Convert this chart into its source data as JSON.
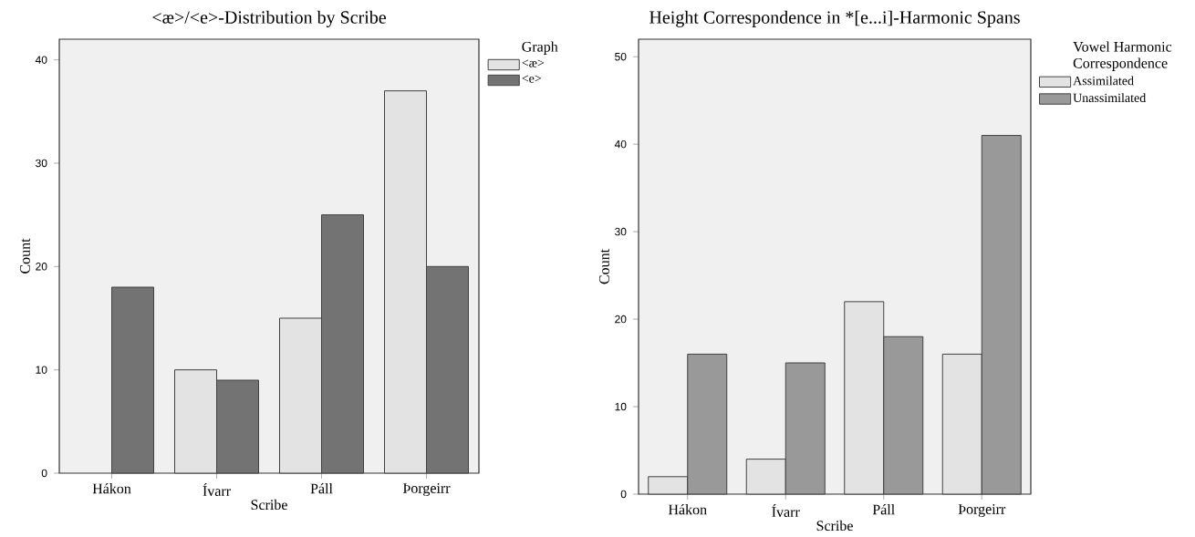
{
  "chart_data": [
    {
      "type": "bar",
      "title": "<æ>/<e>-Distribution by Scribe",
      "xlabel": "Scribe",
      "ylabel": "Count",
      "legend_title": "Graph",
      "legend": "top right",
      "categories": [
        "Hákon",
        "Ívarr",
        "Páll",
        "Þorgeirr"
      ],
      "series": [
        {
          "name": "<æ>",
          "color": "#e3e3e3",
          "values": [
            null,
            10,
            15,
            37
          ]
        },
        {
          "name": "<e>",
          "color": "#737373",
          "values": [
            18,
            9,
            25,
            20
          ]
        }
      ],
      "ylim": [
        0,
        42
      ],
      "yticks": [
        0,
        10,
        20,
        30,
        40
      ]
    },
    {
      "type": "bar",
      "title": "Height Correspondence in *[e...i]-Harmonic Spans",
      "xlabel": "Scribe",
      "ylabel": "Count",
      "legend_title": "Vowel Harmonic Correspondence",
      "legend": "top right",
      "categories": [
        "Hákon",
        "Ívarr",
        "Páll",
        "Þorgeirr"
      ],
      "series": [
        {
          "name": "Assimilated",
          "color": "#e3e3e3",
          "values": [
            2,
            4,
            22,
            16
          ]
        },
        {
          "name": "Unassimilated",
          "color": "#999999",
          "values": [
            16,
            15,
            18,
            41
          ]
        }
      ],
      "ylim": [
        0,
        52
      ],
      "yticks": [
        0,
        10,
        20,
        30,
        40,
        50
      ]
    }
  ]
}
